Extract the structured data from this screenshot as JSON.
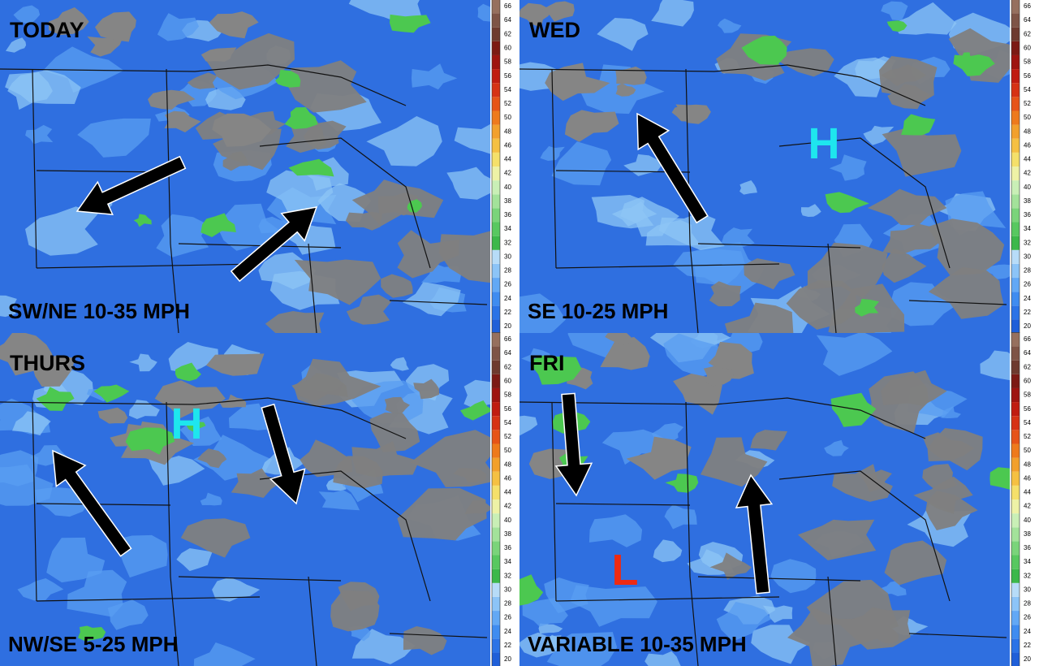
{
  "panels": [
    {
      "title": "TODAY",
      "caption": "SW/NE 10-35 MPH",
      "markers": []
    },
    {
      "title": "WED",
      "caption": "SE 10-25 MPH",
      "markers": [
        "H"
      ]
    },
    {
      "title": "THURS",
      "caption": "NW/SE 5-25 MPH",
      "markers": [
        "H"
      ]
    },
    {
      "title": "FRI",
      "caption": "VARIABLE 10-35 MPH",
      "markers": [
        "L"
      ]
    }
  ],
  "colorbar_ticks": [
    20,
    22,
    24,
    26,
    28,
    30,
    32,
    34,
    36,
    38,
    40,
    42,
    44,
    46,
    48,
    50,
    52,
    54,
    56,
    58,
    60,
    62,
    64,
    66
  ]
}
